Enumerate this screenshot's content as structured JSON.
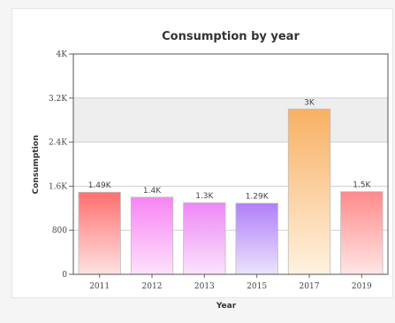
{
  "chart_data": {
    "type": "bar",
    "title": "Consumption by year",
    "xlabel": "Year",
    "ylabel": "Consumption",
    "categories": [
      "2011",
      "2012",
      "2013",
      "2015",
      "2017",
      "2019"
    ],
    "values": [
      1490,
      1400,
      1300,
      1290,
      3000,
      1500
    ],
    "data_labels": [
      "1.49K",
      "1.4K",
      "1.3K",
      "1.29K",
      "3K",
      "1.5K"
    ],
    "ylim": [
      0,
      4000
    ],
    "y_ticks": [
      0,
      800,
      1600,
      2400,
      3200,
      4000
    ],
    "y_tick_labels": [
      "0",
      "800",
      "1.6K",
      "2.4K",
      "3.2K",
      "4K"
    ],
    "grid": true,
    "highlight_band": [
      2400,
      3200
    ],
    "bar_colors": [
      [
        "#ff6f6f",
        "#ffe2e2"
      ],
      [
        "#f884f4",
        "#fde2fb"
      ],
      [
        "#ee88f4",
        "#fbe3fd"
      ],
      [
        "#b080f8",
        "#ece3fd"
      ],
      [
        "#f8b063",
        "#fff2e0"
      ],
      [
        "#ff8a8a",
        "#ffe6e6"
      ]
    ]
  }
}
